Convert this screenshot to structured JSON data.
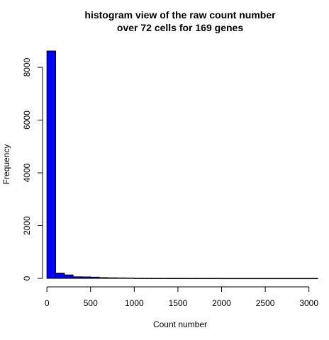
{
  "chart_data": {
    "type": "bar",
    "title_lines": [
      "histogram view of the raw count number",
      "over 72 cells for 169 genes"
    ],
    "xlabel": "Count number",
    "ylabel": "Frequency",
    "bin_width": 100,
    "bins": [
      {
        "x0": 0,
        "x1": 100,
        "value": 8620
      },
      {
        "x0": 100,
        "x1": 200,
        "value": 200
      },
      {
        "x0": 200,
        "x1": 300,
        "value": 130
      },
      {
        "x0": 300,
        "x1": 400,
        "value": 60
      },
      {
        "x0": 400,
        "x1": 500,
        "value": 55
      },
      {
        "x0": 500,
        "x1": 600,
        "value": 45
      },
      {
        "x0": 600,
        "x1": 700,
        "value": 28
      },
      {
        "x0": 700,
        "x1": 800,
        "value": 22
      },
      {
        "x0": 800,
        "x1": 900,
        "value": 18
      },
      {
        "x0": 900,
        "x1": 1000,
        "value": 15
      },
      {
        "x0": 1000,
        "x1": 1100,
        "value": 6
      },
      {
        "x0": 1100,
        "x1": 1200,
        "value": 5
      },
      {
        "x0": 1200,
        "x1": 1300,
        "value": 4
      },
      {
        "x0": 1300,
        "x1": 1400,
        "value": 4
      },
      {
        "x0": 1400,
        "x1": 1500,
        "value": 3
      },
      {
        "x0": 1500,
        "x1": 1600,
        "value": 3
      },
      {
        "x0": 1600,
        "x1": 1700,
        "value": 2
      },
      {
        "x0": 1700,
        "x1": 1800,
        "value": 2
      },
      {
        "x0": 1800,
        "x1": 1900,
        "value": 2
      },
      {
        "x0": 1900,
        "x1": 2000,
        "value": 2
      },
      {
        "x0": 2000,
        "x1": 2100,
        "value": 1
      },
      {
        "x0": 2100,
        "x1": 2200,
        "value": 1
      },
      {
        "x0": 2200,
        "x1": 2300,
        "value": 1
      },
      {
        "x0": 2300,
        "x1": 2400,
        "value": 1
      },
      {
        "x0": 2400,
        "x1": 2500,
        "value": 1
      },
      {
        "x0": 2500,
        "x1": 2600,
        "value": 1
      },
      {
        "x0": 2600,
        "x1": 2700,
        "value": 1
      },
      {
        "x0": 2700,
        "x1": 2800,
        "value": 1
      },
      {
        "x0": 2800,
        "x1": 2900,
        "value": 1
      },
      {
        "x0": 2900,
        "x1": 3000,
        "value": 1
      },
      {
        "x0": 3000,
        "x1": 3100,
        "value": 1
      }
    ],
    "x_ticks": [
      0,
      500,
      1000,
      1500,
      2000,
      2500,
      3000
    ],
    "y_ticks": [
      0,
      2000,
      4000,
      6000,
      8000
    ],
    "xlim": [
      -50,
      3100
    ],
    "ylim": [
      0,
      8620
    ],
    "bar_color": "#0000ff",
    "grid": false,
    "legend": "none"
  }
}
